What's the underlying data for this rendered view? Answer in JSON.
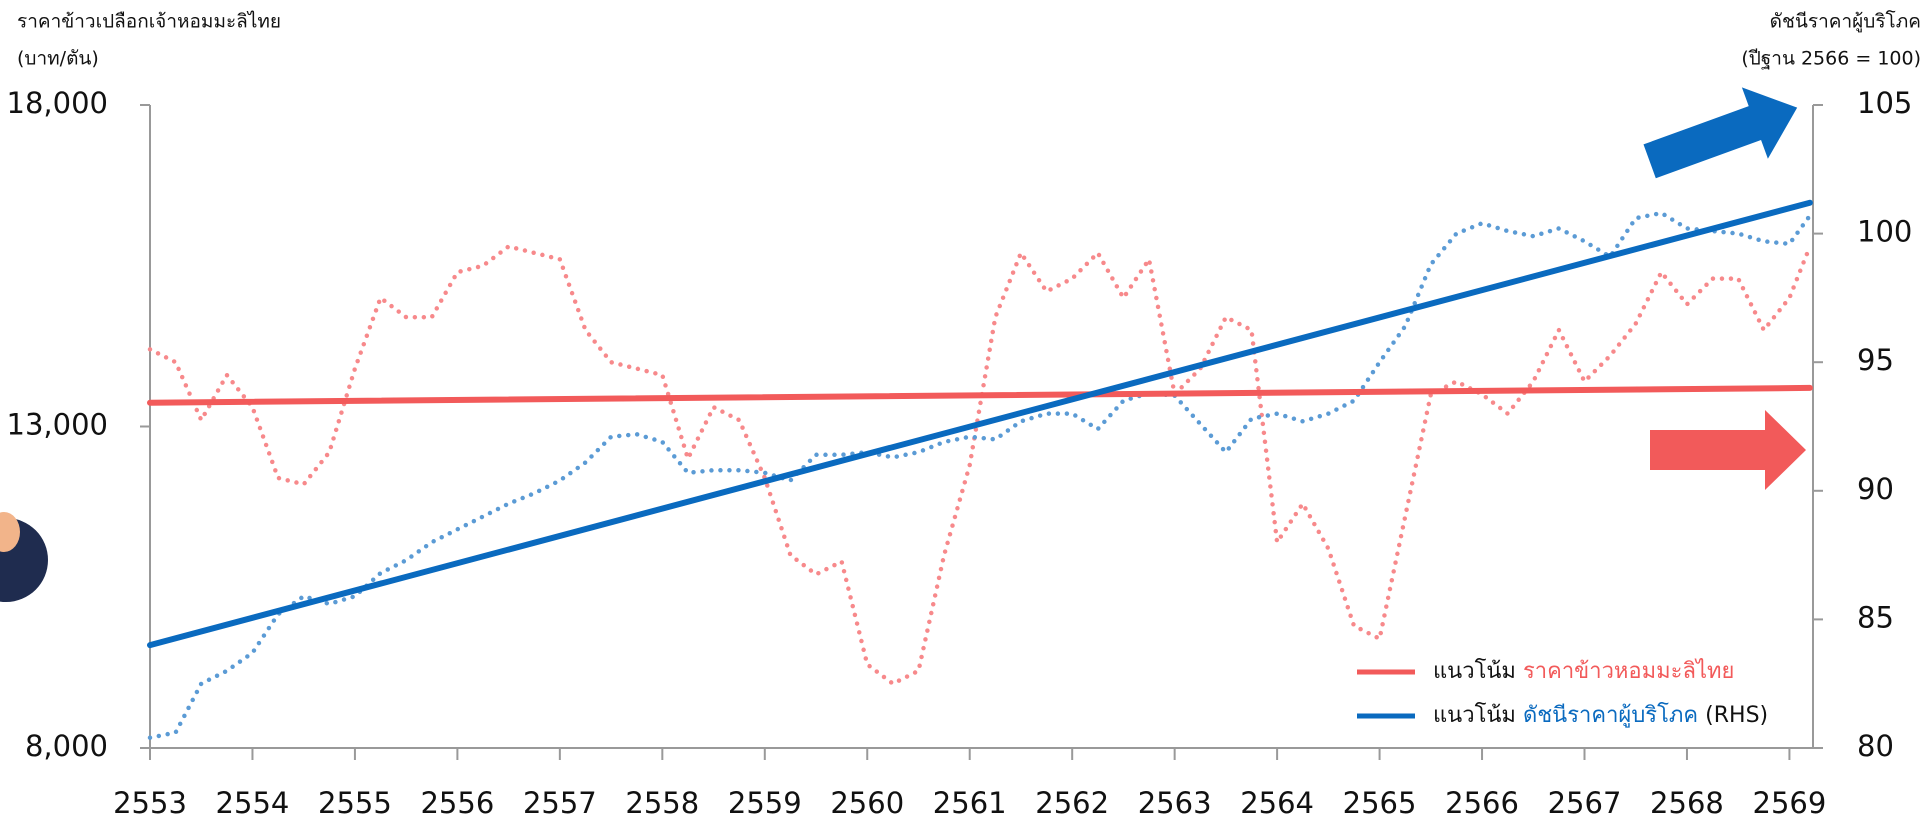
{
  "chart_data": {
    "type": "line",
    "y_title": "ราคาข้าวเปลือกเจ้าหอมมะลิไทย",
    "y_unit": "(บาท/ตัน)",
    "y2_title": "ดัชนีราคาผู้บริโภค",
    "y2_unit": "(ปีฐาน 2566 = 100)",
    "x": [
      2553,
      2553.25,
      2553.5,
      2553.75,
      2554,
      2554.25,
      2554.5,
      2554.75,
      2555,
      2555.25,
      2555.5,
      2555.75,
      2556,
      2556.25,
      2556.5,
      2556.75,
      2557,
      2557.25,
      2557.5,
      2557.75,
      2558,
      2558.25,
      2558.5,
      2558.75,
      2559,
      2559.25,
      2559.5,
      2559.75,
      2560,
      2560.25,
      2560.5,
      2560.75,
      2561,
      2561.25,
      2561.5,
      2561.75,
      2562,
      2562.25,
      2562.5,
      2562.75,
      2563,
      2563.25,
      2563.5,
      2563.75,
      2564,
      2564.25,
      2564.5,
      2564.75,
      2565,
      2565.25,
      2565.5,
      2565.75,
      2566,
      2566.25,
      2566.5,
      2566.75,
      2567,
      2567.25,
      2567.5,
      2567.75,
      2568,
      2568.25,
      2568.5,
      2568.75,
      2569,
      2569.2
    ],
    "series": [
      {
        "color": "#f7898b",
        "style": "dotted",
        "axis": "y",
        "values": [
          14200,
          14000,
          13100,
          13800,
          13300,
          12200,
          12100,
          12600,
          13900,
          15000,
          14700,
          14700,
          15400,
          15500,
          15800,
          15700,
          15600,
          14500,
          14000,
          13900,
          13800,
          12500,
          13300,
          13100,
          12200,
          11000,
          10700,
          10900,
          9300,
          9000,
          9200,
          11000,
          12400,
          14700,
          15700,
          15100,
          15300,
          15700,
          15000,
          15600,
          13500,
          13900,
          14700,
          14500,
          11200,
          11800,
          11100,
          9900,
          9700,
          11600,
          13500,
          13700,
          13500,
          13200,
          13700,
          14500,
          13700,
          14100,
          14600,
          15400,
          14900,
          15300,
          15300,
          14500,
          15000,
          15800
        ]
      },
      {
        "color": "#5b9bd5",
        "style": "dotted",
        "axis": "y2",
        "values": [
          80.4,
          80.6,
          82.5,
          83.0,
          83.7,
          85.2,
          85.9,
          85.6,
          85.9,
          86.8,
          87.3,
          88.0,
          88.5,
          89.0,
          89.5,
          89.9,
          90.4,
          91.1,
          92.1,
          92.2,
          91.9,
          90.7,
          90.8,
          90.8,
          90.7,
          90.4,
          91.4,
          91.4,
          91.5,
          91.3,
          91.5,
          91.9,
          92.1,
          92.0,
          92.7,
          93.0,
          93.0,
          92.4,
          93.5,
          93.8,
          93.7,
          92.6,
          91.5,
          92.8,
          93.0,
          92.7,
          93.0,
          93.5,
          95.0,
          96.4,
          98.8,
          100.0,
          100.4,
          100.1,
          99.9,
          100.2,
          99.7,
          99.1,
          100.6,
          100.8,
          100.2,
          100.1,
          100.0,
          99.7,
          99.6,
          100.7
        ]
      },
      {
        "legend_prefix": "แนวโน้ม",
        "name": "ราคาข้าวหอมมะลิไทย",
        "color": "#f25a5a",
        "style": "solid",
        "axis": "y",
        "x": [
          2553,
          2569.2
        ],
        "values": [
          13370,
          13600
        ]
      },
      {
        "legend_prefix": "แนวโน้ม",
        "name": "ดัชนีราคาผู้บริโภค",
        "legend_suffix": "(RHS)",
        "color": "#0a6abf",
        "style": "solid",
        "axis": "y2",
        "x": [
          2553,
          2569.2
        ],
        "values": [
          84.0,
          101.2
        ]
      }
    ],
    "xlim": [
      2553,
      2569.23
    ],
    "xticks": [
      2553,
      2554,
      2555,
      2556,
      2557,
      2558,
      2559,
      2560,
      2561,
      2562,
      2563,
      2564,
      2565,
      2566,
      2567,
      2568,
      2569
    ],
    "ylim": [
      8000,
      18000
    ],
    "yticks": [
      {
        "value": 8000,
        "label": "8,000"
      },
      {
        "value": 13000,
        "label": "13,000"
      },
      {
        "value": 18000,
        "label": "18,000"
      }
    ],
    "y2lim": [
      80,
      105
    ],
    "y2ticks": [
      80,
      85,
      90,
      95,
      100,
      105
    ],
    "legend_position": "lower right"
  }
}
